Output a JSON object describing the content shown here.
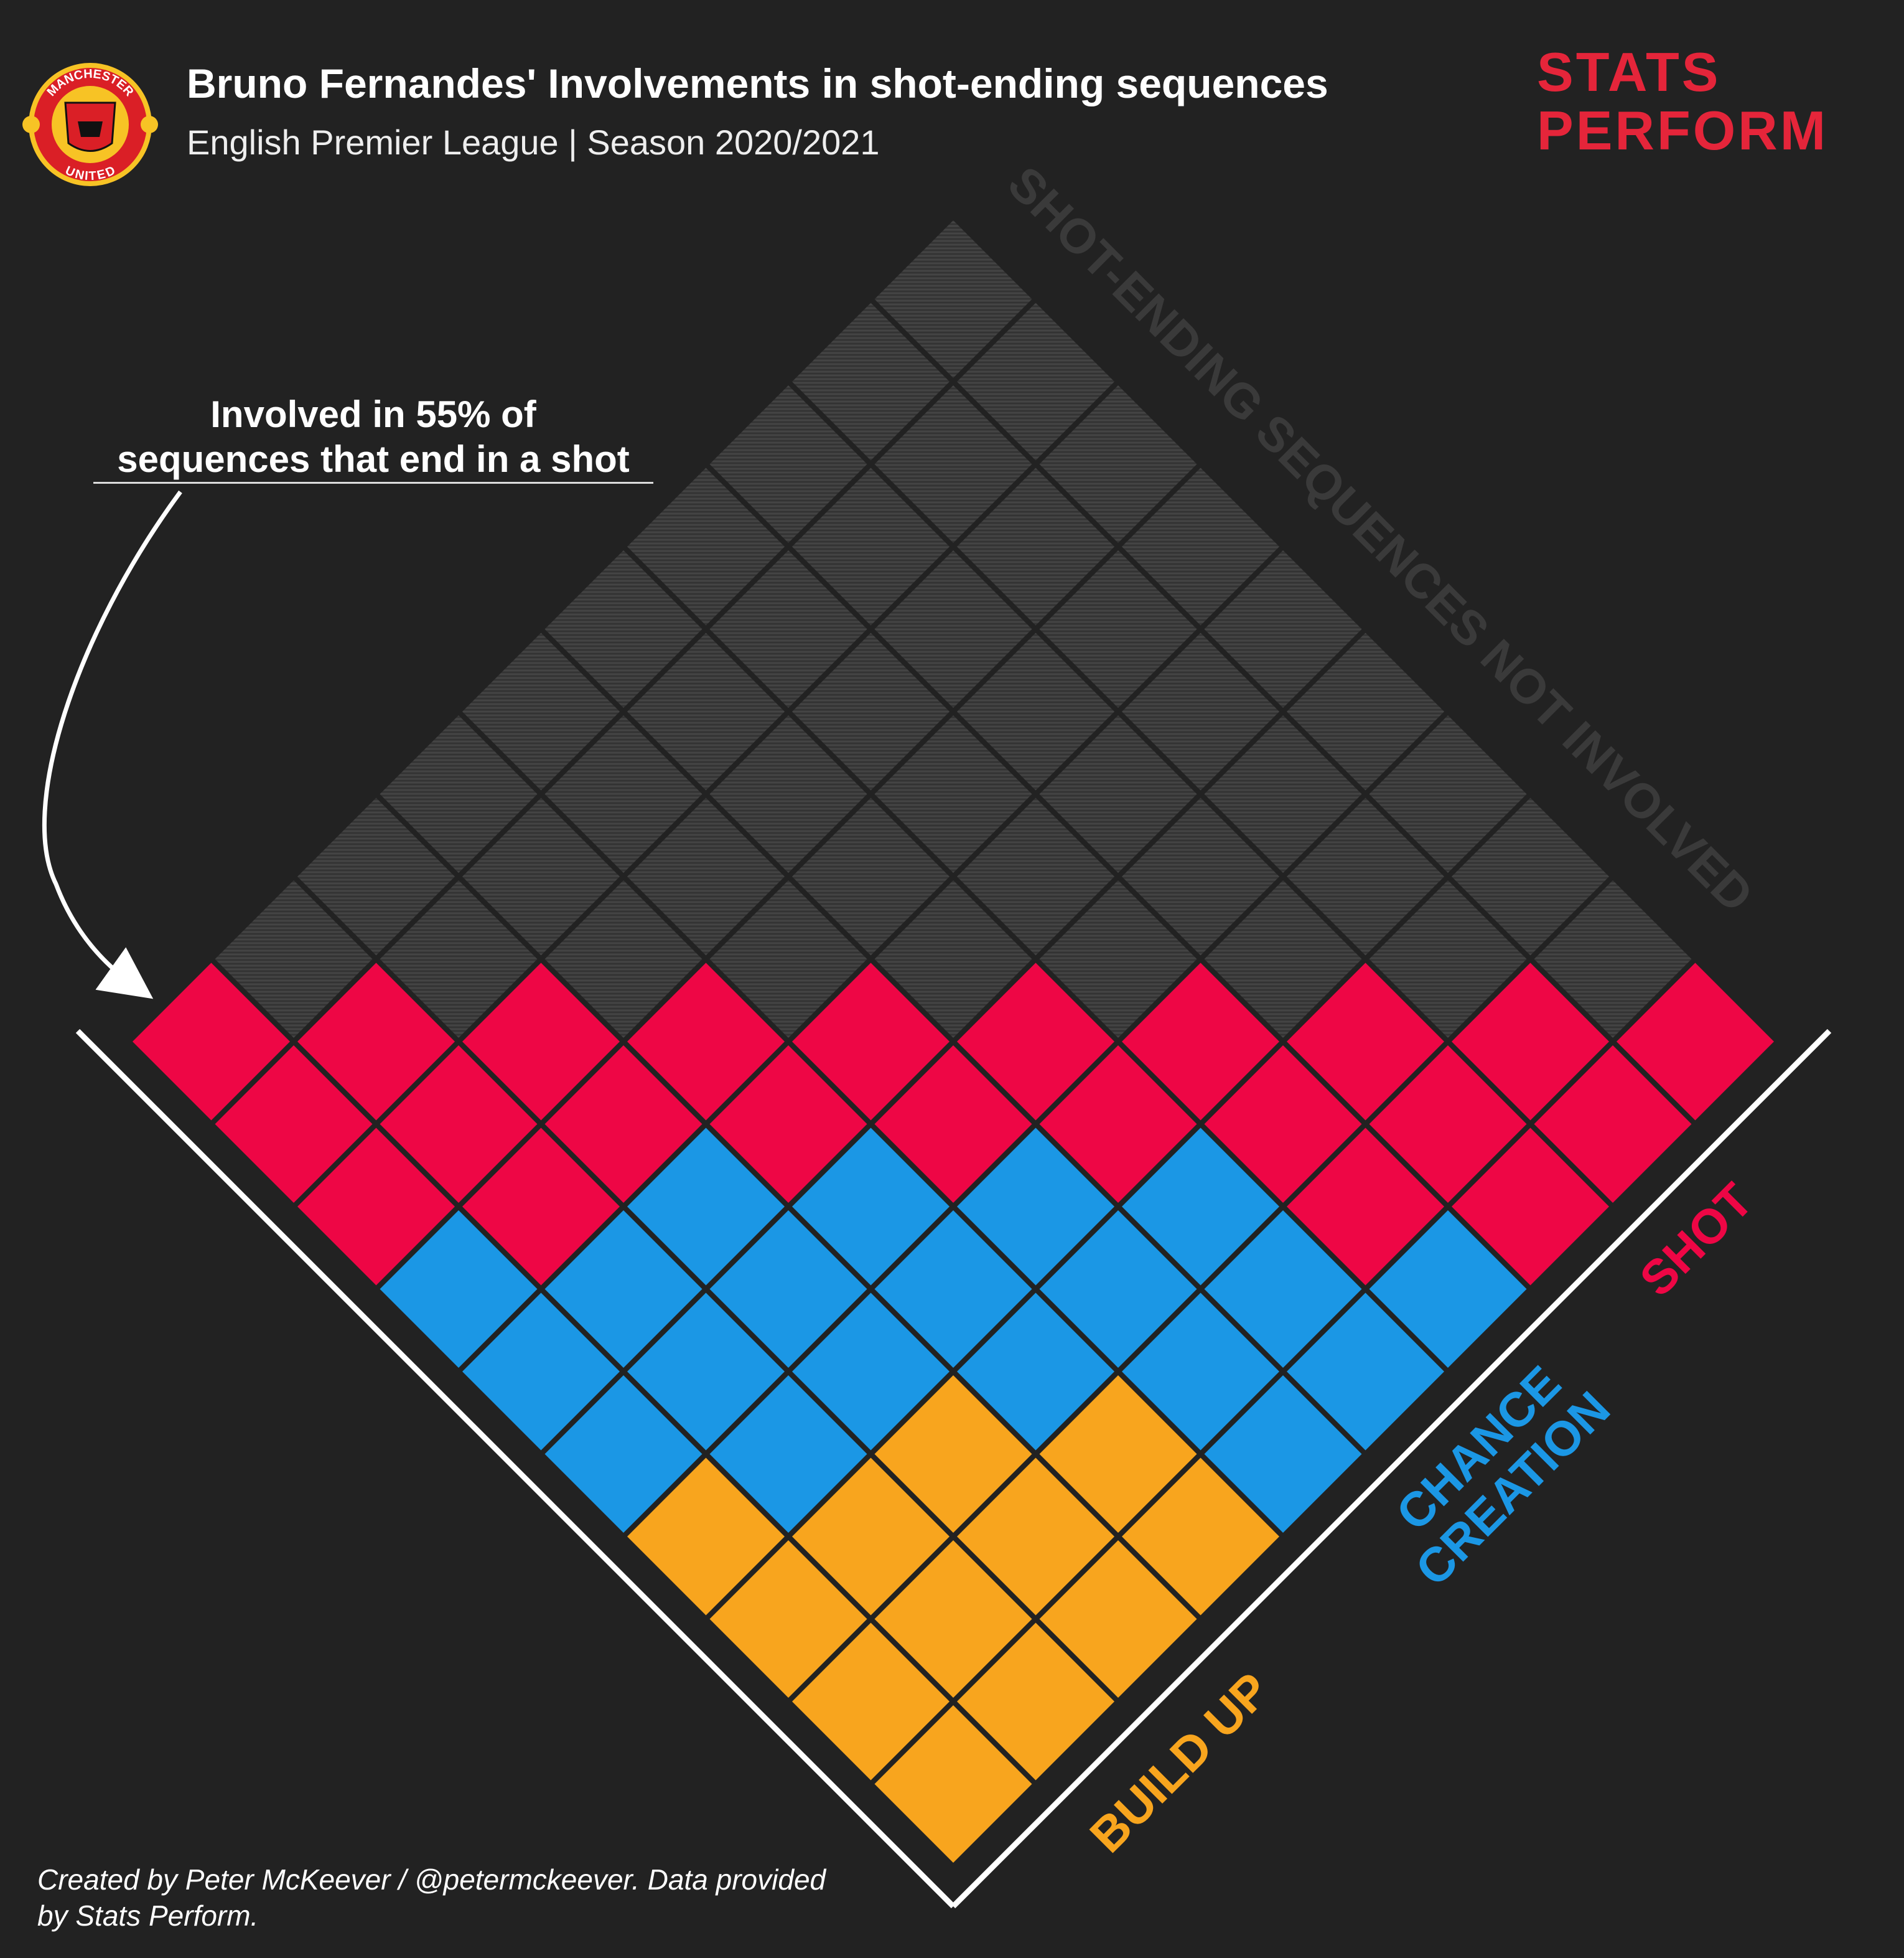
{
  "header": {
    "title": "Bruno Fernandes' Involvements in shot-ending sequences",
    "subtitle": "English Premier League | Season 2020/2021"
  },
  "logo": {
    "name": "Manchester United crest",
    "text_top": "MANCHESTER",
    "text_bottom": "UNITED",
    "colors": {
      "red": "#da1f26",
      "gold": "#f7c325",
      "black": "#111111"
    }
  },
  "brand": {
    "line1": "STATS",
    "line2": "PERFORM"
  },
  "annotation": {
    "line1": "Involved in 55% of",
    "line2": "sequences that end in a shot"
  },
  "footer": {
    "line1": "Created by Peter McKeever / @petermckeever. Data provided",
    "line2": "by Stats Perform."
  },
  "chart_data": {
    "type": "waffle",
    "total_squares": 100,
    "involved_percent": 55,
    "categories": [
      {
        "name": "SHOT",
        "count": 23,
        "color": "#ee0645"
      },
      {
        "name": "CHANCE CREATION",
        "count": 20,
        "color": "#1b97e5"
      },
      {
        "name": "BUILD UP",
        "count": 12,
        "color": "#f8a51e"
      },
      {
        "name": "SHOT-ENDING SEQUENCES NOT INVOLVED",
        "count": 45,
        "color": "#383838"
      }
    ],
    "labels": {
      "shot": "SHOT",
      "chance_line1": "CHANCE",
      "chance_line2": "CREATION",
      "build_up": "BUILD UP",
      "not_involved": "SHOT-ENDING SEQUENCES NOT INVOLVED"
    }
  }
}
